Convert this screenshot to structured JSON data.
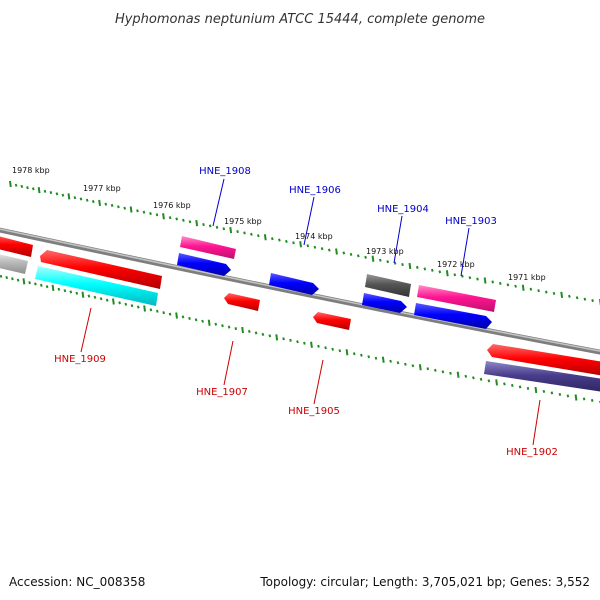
{
  "title": "Hyphomonas neptunium ATCC 15444, complete genome",
  "footer": {
    "accession": "Accession: NC_008358",
    "summary": "Topology: circular; Length: 3,705,021 bp; Genes: 3,552"
  },
  "kbp_labels": [
    "1978 kbp",
    "1977 kbp",
    "1976 kbp",
    "1975 kbp",
    "1974 kbp",
    "1973 kbp",
    "1972 kbp",
    "1971 kbp"
  ],
  "gene_labels": {
    "forward": [
      "HNE_1908",
      "HNE_1906",
      "HNE_1904",
      "HNE_1903"
    ],
    "reverse": [
      "HNE_1909",
      "HNE_1907",
      "HNE_1905",
      "HNE_1902"
    ]
  },
  "colors": {
    "forward_label": "#0000cc",
    "reverse_label": "#cc0000",
    "ruler": "#228b22",
    "backbone": "#8a8a8a"
  }
}
